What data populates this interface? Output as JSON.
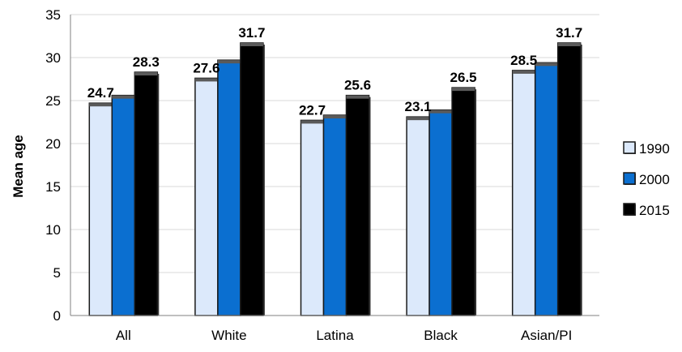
{
  "chart_data": {
    "type": "bar",
    "ylabel": "Mean age",
    "xlabel": "",
    "ylim": [
      0,
      35
    ],
    "yticks": [
      0,
      5,
      10,
      15,
      20,
      25,
      30,
      35
    ],
    "grid": true,
    "legend_position": "right",
    "categories": [
      "All",
      "White",
      "Latina",
      "Black",
      "Asian/PI"
    ],
    "series": [
      {
        "name": "1990",
        "color": "#dce9fb",
        "values": [
          24.7,
          27.6,
          22.7,
          23.1,
          28.5
        ],
        "labels": [
          "24.7",
          "27.6",
          "22.7",
          "23.1",
          "28.5"
        ]
      },
      {
        "name": "2000",
        "color": "#0b6fd0",
        "values": [
          25.6,
          29.7,
          23.3,
          23.9,
          29.4
        ],
        "labels": [
          "",
          "",
          "",
          "",
          ""
        ]
      },
      {
        "name": "2015",
        "color": "#000000",
        "values": [
          28.3,
          31.7,
          25.6,
          26.5,
          31.7
        ],
        "labels": [
          "28.3",
          "31.7",
          "25.6",
          "26.5",
          "31.7"
        ]
      }
    ]
  }
}
